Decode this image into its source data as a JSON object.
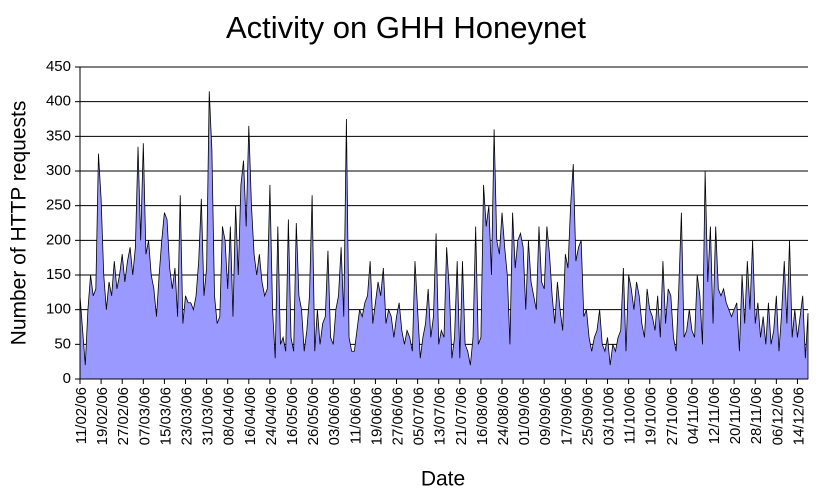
{
  "chart_data": {
    "type": "area",
    "title": "Activity on GHH Honeynet",
    "xlabel": "Date",
    "ylabel": "Number of HTTP requests",
    "color": "#9999ff",
    "grid": true,
    "ylim": [
      0,
      450
    ],
    "yticks": [
      0,
      50,
      100,
      150,
      200,
      250,
      300,
      350,
      400,
      450
    ],
    "categories": [
      "11/02/06",
      null,
      null,
      null,
      null,
      null,
      null,
      null,
      "19/02/06",
      null,
      null,
      null,
      null,
      null,
      null,
      null,
      "27/02/06",
      null,
      null,
      null,
      null,
      null,
      null,
      null,
      "07/03/06",
      null,
      null,
      null,
      null,
      null,
      null,
      null,
      "15/03/06",
      null,
      null,
      null,
      null,
      null,
      null,
      null,
      "23/03/06",
      null,
      null,
      null,
      null,
      null,
      null,
      null,
      "31/03/06",
      null,
      null,
      null,
      null,
      null,
      null,
      null,
      "08/04/06",
      null,
      null,
      null,
      null,
      null,
      null,
      null,
      "16/04/06",
      null,
      null,
      null,
      null,
      null,
      null,
      null,
      "24/04/06",
      null,
      null,
      null,
      null,
      null,
      null,
      null,
      "16/05/06",
      null,
      null,
      null,
      null,
      null,
      null,
      null,
      "26/05/06",
      null,
      null,
      null,
      null,
      null,
      null,
      null,
      "03/06/06",
      null,
      null,
      null,
      null,
      null,
      null,
      null,
      "11/06/06",
      null,
      null,
      null,
      null,
      null,
      null,
      null,
      "19/06/06",
      null,
      null,
      null,
      null,
      null,
      null,
      null,
      "27/06/06",
      null,
      null,
      null,
      null,
      null,
      null,
      null,
      "05/07/06",
      null,
      null,
      null,
      null,
      null,
      null,
      null,
      "13/07/06",
      null,
      null,
      null,
      null,
      null,
      null,
      null,
      "21/07/06",
      null,
      null,
      null,
      null,
      null,
      null,
      null,
      "16/08/06",
      null,
      null,
      null,
      null,
      null,
      null,
      null,
      "24/08/06",
      null,
      null,
      null,
      null,
      null,
      null,
      null,
      "01/09/06",
      null,
      null,
      null,
      null,
      null,
      null,
      null,
      "09/09/06",
      null,
      null,
      null,
      null,
      null,
      null,
      null,
      "17/09/06",
      null,
      null,
      null,
      null,
      null,
      null,
      null,
      "25/09/06",
      null,
      null,
      null,
      null,
      null,
      null,
      null,
      "03/10/06",
      null,
      null,
      null,
      null,
      null,
      null,
      null,
      "11/10/06",
      null,
      null,
      null,
      null,
      null,
      null,
      null,
      "19/10/06",
      null,
      null,
      null,
      null,
      null,
      null,
      null,
      "27/10/06",
      null,
      null,
      null,
      null,
      null,
      null,
      null,
      "04/11/06",
      null,
      null,
      null,
      null,
      null,
      null,
      null,
      "12/11/06",
      null,
      null,
      null,
      null,
      null,
      null,
      null,
      "20/11/06",
      null,
      null,
      null,
      null,
      null,
      null,
      null,
      "28/11/06",
      null,
      null,
      null,
      null,
      null,
      null,
      null,
      "06/12/06",
      null,
      null,
      null,
      null,
      null,
      null,
      null,
      "14/12/06",
      null,
      null,
      null,
      null
    ],
    "values": [
      120,
      70,
      20,
      100,
      150,
      120,
      130,
      325,
      260,
      150,
      100,
      140,
      120,
      170,
      130,
      150,
      180,
      140,
      170,
      190,
      150,
      190,
      335,
      200,
      340,
      180,
      200,
      150,
      130,
      90,
      150,
      200,
      240,
      230,
      160,
      130,
      160,
      90,
      265,
      80,
      120,
      110,
      110,
      100,
      120,
      170,
      260,
      120,
      160,
      415,
      330,
      120,
      80,
      90,
      220,
      200,
      130,
      220,
      90,
      250,
      150,
      280,
      315,
      220,
      365,
      250,
      180,
      150,
      180,
      140,
      120,
      130,
      280,
      100,
      30,
      220,
      50,
      60,
      40,
      230,
      60,
      40,
      225,
      120,
      100,
      40,
      70,
      120,
      265,
      40,
      100,
      50,
      80,
      90,
      185,
      60,
      50,
      100,
      120,
      190,
      90,
      375,
      60,
      40,
      40,
      70,
      100,
      90,
      110,
      120,
      170,
      80,
      110,
      140,
      120,
      160,
      80,
      100,
      90,
      60,
      90,
      110,
      70,
      50,
      70,
      60,
      40,
      170,
      100,
      30,
      60,
      80,
      130,
      60,
      90,
      210,
      50,
      70,
      60,
      190,
      130,
      30,
      60,
      170,
      30,
      170,
      50,
      40,
      20,
      60,
      220,
      50,
      60,
      280,
      220,
      250,
      150,
      360,
      200,
      180,
      240,
      190,
      150,
      50,
      240,
      160,
      200,
      210,
      190,
      100,
      200,
      140,
      120,
      100,
      220,
      140,
      130,
      220,
      180,
      120,
      80,
      140,
      100,
      70,
      180,
      160,
      250,
      310,
      170,
      190,
      200,
      90,
      100,
      60,
      40,
      60,
      70,
      100,
      50,
      40,
      60,
      20,
      50,
      40,
      60,
      70,
      160,
      40,
      150,
      130,
      100,
      140,
      120,
      80,
      60,
      130,
      100,
      90,
      70,
      120,
      60,
      170,
      80,
      130,
      120,
      60,
      40,
      130,
      240,
      60,
      70,
      100,
      70,
      60,
      150,
      120,
      50,
      300,
      140,
      220,
      80,
      220,
      130,
      120,
      130,
      110,
      100,
      90,
      100,
      110,
      40,
      150,
      80,
      170,
      100,
      200,
      80,
      110,
      60,
      90,
      50,
      110,
      50,
      70,
      120,
      40,
      95,
      170,
      80,
      200,
      60,
      100,
      60,
      90,
      120,
      30,
      95
    ]
  }
}
